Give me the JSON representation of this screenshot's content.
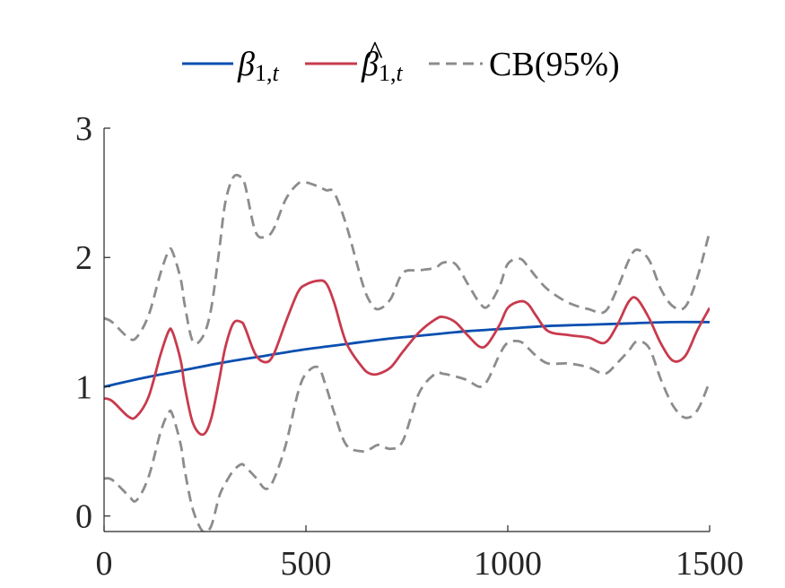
{
  "chart_data": {
    "type": "line",
    "title": "",
    "xlabel": "",
    "ylabel": "",
    "xlim": [
      0,
      1500
    ],
    "ylim": [
      -0.12,
      3
    ],
    "xticks": [
      0,
      500,
      1000,
      1500
    ],
    "yticks": [
      0,
      1,
      2,
      3
    ],
    "xtick_labels": [
      "0",
      "500",
      "1000",
      "1500"
    ],
    "ytick_labels": [
      "0",
      "1",
      "2",
      "3"
    ],
    "grid": false,
    "legend_position": "top-center",
    "legend": {
      "true_beta": {
        "symbol": "β",
        "sub_num": "1,",
        "sub_var": "t"
      },
      "est_beta": {
        "symbol": "β",
        "hat": "^",
        "sub_num": "1,",
        "sub_var": "t"
      },
      "cb": "CB(95%)"
    },
    "series": [
      {
        "key": "true_beta",
        "color": "#0a4fb0",
        "style": "solid",
        "x": [
          0,
          100,
          200,
          300,
          400,
          500,
          600,
          700,
          800,
          900,
          1000,
          1100,
          1200,
          1300,
          1400,
          1500
        ],
        "y": [
          1.0,
          1.07,
          1.13,
          1.19,
          1.24,
          1.29,
          1.33,
          1.37,
          1.4,
          1.43,
          1.45,
          1.47,
          1.48,
          1.49,
          1.5,
          1.5
        ]
      },
      {
        "key": "est_beta",
        "color": "#c83a4e",
        "style": "solid",
        "x": [
          0,
          20,
          60,
          80,
          110,
          140,
          160,
          170,
          190,
          200,
          220,
          245,
          265,
          285,
          300,
          320,
          340,
          350,
          375,
          400,
          420,
          450,
          480,
          500,
          530,
          550,
          570,
          600,
          640,
          660,
          680,
          710,
          740,
          780,
          820,
          840,
          870,
          900,
          930,
          950,
          980,
          1000,
          1030,
          1050,
          1070,
          1100,
          1150,
          1200,
          1240,
          1270,
          1300,
          1320,
          1350,
          1380,
          1410,
          1440,
          1470,
          1500
        ],
        "y": [
          0.91,
          0.89,
          0.77,
          0.77,
          0.92,
          1.25,
          1.43,
          1.42,
          1.2,
          1.0,
          0.72,
          0.63,
          0.75,
          1.05,
          1.3,
          1.49,
          1.5,
          1.45,
          1.25,
          1.19,
          1.25,
          1.5,
          1.73,
          1.79,
          1.82,
          1.8,
          1.65,
          1.34,
          1.15,
          1.1,
          1.1,
          1.15,
          1.27,
          1.42,
          1.52,
          1.54,
          1.5,
          1.4,
          1.31,
          1.33,
          1.48,
          1.61,
          1.66,
          1.64,
          1.55,
          1.43,
          1.4,
          1.38,
          1.34,
          1.47,
          1.66,
          1.68,
          1.53,
          1.33,
          1.2,
          1.24,
          1.44,
          1.61
        ]
      },
      {
        "key": "cb_upper",
        "color": "#8c8c8c",
        "style": "dashed",
        "x": [
          0,
          20,
          60,
          80,
          110,
          140,
          160,
          170,
          190,
          200,
          220,
          245,
          265,
          285,
          300,
          320,
          340,
          350,
          375,
          400,
          420,
          450,
          480,
          500,
          530,
          550,
          570,
          600,
          640,
          660,
          680,
          710,
          740,
          780,
          820,
          840,
          870,
          900,
          930,
          950,
          980,
          1000,
          1030,
          1050,
          1070,
          1100,
          1150,
          1200,
          1240,
          1270,
          1300,
          1320,
          1350,
          1380,
          1410,
          1440,
          1470,
          1500
        ],
        "y": [
          1.53,
          1.5,
          1.38,
          1.38,
          1.55,
          1.88,
          2.05,
          2.04,
          1.83,
          1.63,
          1.35,
          1.39,
          1.6,
          2.05,
          2.42,
          2.62,
          2.62,
          2.55,
          2.2,
          2.16,
          2.22,
          2.45,
          2.57,
          2.58,
          2.55,
          2.52,
          2.5,
          2.25,
          1.8,
          1.65,
          1.6,
          1.68,
          1.88,
          1.9,
          1.92,
          1.96,
          1.95,
          1.8,
          1.65,
          1.62,
          1.78,
          1.95,
          1.99,
          1.93,
          1.85,
          1.75,
          1.65,
          1.6,
          1.58,
          1.75,
          1.98,
          2.06,
          1.98,
          1.75,
          1.62,
          1.62,
          1.85,
          2.2
        ]
      },
      {
        "key": "cb_lower",
        "color": "#8c8c8c",
        "style": "dashed",
        "x": [
          0,
          20,
          60,
          80,
          110,
          140,
          160,
          170,
          190,
          200,
          220,
          245,
          265,
          285,
          300,
          320,
          340,
          350,
          375,
          400,
          420,
          450,
          480,
          500,
          530,
          550,
          570,
          600,
          640,
          660,
          680,
          710,
          740,
          780,
          820,
          840,
          870,
          900,
          930,
          950,
          980,
          1000,
          1030,
          1050,
          1070,
          1100,
          1150,
          1200,
          1240,
          1270,
          1300,
          1320,
          1350,
          1380,
          1410,
          1440,
          1470,
          1500
        ],
        "y": [
          0.29,
          0.28,
          0.16,
          0.12,
          0.3,
          0.65,
          0.8,
          0.78,
          0.55,
          0.35,
          0.05,
          -0.12,
          -0.08,
          0.15,
          0.25,
          0.35,
          0.4,
          0.38,
          0.3,
          0.21,
          0.28,
          0.55,
          0.95,
          1.1,
          1.15,
          1.0,
          0.8,
          0.55,
          0.5,
          0.52,
          0.55,
          0.52,
          0.58,
          0.95,
          1.1,
          1.1,
          1.08,
          1.05,
          1.0,
          1.05,
          1.25,
          1.34,
          1.35,
          1.3,
          1.24,
          1.18,
          1.18,
          1.15,
          1.1,
          1.18,
          1.28,
          1.35,
          1.3,
          1.05,
          0.85,
          0.76,
          0.82,
          1.04
        ]
      }
    ]
  }
}
